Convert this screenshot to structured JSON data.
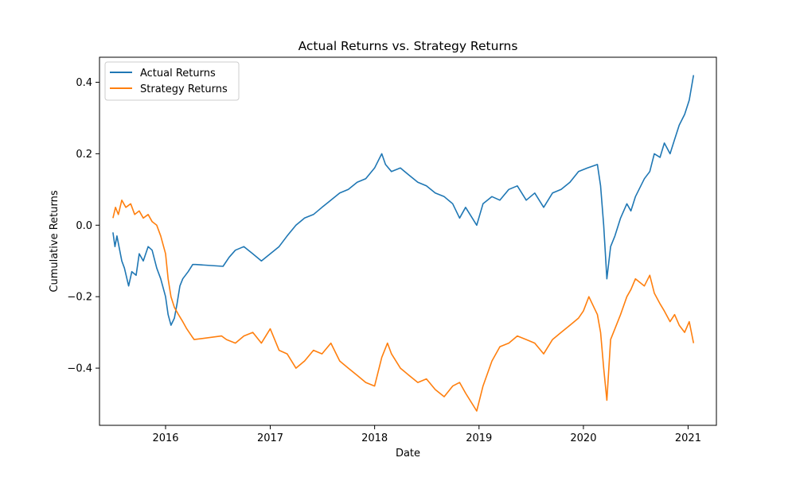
{
  "chart_data": {
    "type": "line",
    "title": "Actual Returns vs. Strategy Returns",
    "xlabel": "Date",
    "ylabel": "Cumulative Returns",
    "x_ticks": [
      "2016",
      "2017",
      "2018",
      "2019",
      "2020",
      "2021"
    ],
    "y_ticks": [
      "−0.4",
      "−0.2",
      "0.0",
      "0.2",
      "0.4"
    ],
    "y_tick_values": [
      -0.4,
      -0.2,
      0.0,
      0.2,
      0.4
    ],
    "xlim": [
      "2015-05-15",
      "2021-04-10"
    ],
    "ylim": [
      -0.56,
      0.47
    ],
    "grid": false,
    "legend_position": "upper-left",
    "series": [
      {
        "name": "Actual Returns",
        "color": "#1f77b4",
        "x": [
          "2015-07-01",
          "2015-07-08",
          "2015-07-15",
          "2015-08-01",
          "2015-08-10",
          "2015-08-25",
          "2015-09-05",
          "2015-09-20",
          "2015-10-01",
          "2015-10-15",
          "2015-11-01",
          "2015-11-15",
          "2015-12-01",
          "2015-12-15",
          "2016-01-01",
          "2016-01-10",
          "2016-01-20",
          "2016-02-01",
          "2016-02-10",
          "2016-02-20",
          "2016-03-01",
          "2016-03-20",
          "2016-04-05",
          "2016-04-15",
          "2016-07-20",
          "2016-08-10",
          "2016-09-01",
          "2016-10-01",
          "2016-11-01",
          "2016-12-01",
          "2017-01-01",
          "2017-02-01",
          "2017-03-01",
          "2017-04-01",
          "2017-05-01",
          "2017-06-01",
          "2017-07-01",
          "2017-08-01",
          "2017-09-01",
          "2017-10-01",
          "2017-11-01",
          "2017-12-01",
          "2018-01-01",
          "2018-01-26",
          "2018-02-08",
          "2018-03-01",
          "2018-04-01",
          "2018-05-01",
          "2018-06-01",
          "2018-07-01",
          "2018-08-01",
          "2018-09-01",
          "2018-10-01",
          "2018-10-25",
          "2018-11-15",
          "2018-12-24",
          "2019-01-15",
          "2019-02-15",
          "2019-03-15",
          "2019-04-15",
          "2019-05-15",
          "2019-06-15",
          "2019-07-15",
          "2019-08-15",
          "2019-09-15",
          "2019-10-15",
          "2019-11-15",
          "2019-12-15",
          "2020-01-15",
          "2020-02-19",
          "2020-03-01",
          "2020-03-12",
          "2020-03-23",
          "2020-04-05",
          "2020-04-20",
          "2020-05-10",
          "2020-06-01",
          "2020-06-15",
          "2020-07-01",
          "2020-08-01",
          "2020-08-20",
          "2020-09-05",
          "2020-09-25",
          "2020-10-10",
          "2020-10-30",
          "2020-11-15",
          "2020-12-01",
          "2020-12-20",
          "2021-01-05",
          "2021-01-20"
        ],
        "values": [
          -0.02,
          -0.06,
          -0.03,
          -0.1,
          -0.12,
          -0.17,
          -0.13,
          -0.14,
          -0.08,
          -0.1,
          -0.06,
          -0.07,
          -0.12,
          -0.15,
          -0.2,
          -0.25,
          -0.28,
          -0.26,
          -0.22,
          -0.17,
          -0.15,
          -0.13,
          -0.11,
          -0.11,
          -0.115,
          -0.09,
          -0.07,
          -0.06,
          -0.08,
          -0.1,
          -0.08,
          -0.06,
          -0.03,
          0.0,
          0.02,
          0.03,
          0.05,
          0.07,
          0.09,
          0.1,
          0.12,
          0.13,
          0.16,
          0.2,
          0.17,
          0.15,
          0.16,
          0.14,
          0.12,
          0.11,
          0.09,
          0.08,
          0.06,
          0.02,
          0.05,
          0.0,
          0.06,
          0.08,
          0.07,
          0.1,
          0.11,
          0.07,
          0.09,
          0.05,
          0.09,
          0.1,
          0.12,
          0.15,
          0.16,
          0.17,
          0.11,
          0.0,
          -0.15,
          -0.06,
          -0.03,
          0.02,
          0.06,
          0.04,
          0.08,
          0.13,
          0.15,
          0.2,
          0.19,
          0.23,
          0.2,
          0.24,
          0.28,
          0.31,
          0.35,
          0.42
        ]
      },
      {
        "name": "Strategy Returns",
        "color": "#ff7f0e",
        "x": [
          "2015-07-01",
          "2015-07-10",
          "2015-07-20",
          "2015-08-01",
          "2015-08-15",
          "2015-09-01",
          "2015-09-15",
          "2015-10-01",
          "2015-10-15",
          "2015-11-01",
          "2015-11-15",
          "2015-12-01",
          "2015-12-15",
          "2016-01-01",
          "2016-01-10",
          "2016-01-20",
          "2016-02-01",
          "2016-02-15",
          "2016-03-01",
          "2016-03-15",
          "2016-04-01",
          "2016-04-10",
          "2016-07-15",
          "2016-08-01",
          "2016-09-01",
          "2016-10-01",
          "2016-11-01",
          "2016-12-01",
          "2017-01-01",
          "2017-02-01",
          "2017-03-01",
          "2017-04-01",
          "2017-05-01",
          "2017-06-01",
          "2017-07-01",
          "2017-08-01",
          "2017-09-01",
          "2017-10-01",
          "2017-11-01",
          "2017-12-01",
          "2018-01-01",
          "2018-01-26",
          "2018-02-15",
          "2018-03-01",
          "2018-04-01",
          "2018-05-01",
          "2018-06-01",
          "2018-07-01",
          "2018-08-01",
          "2018-09-01",
          "2018-10-01",
          "2018-10-25",
          "2018-11-15",
          "2018-12-24",
          "2019-01-15",
          "2019-02-15",
          "2019-03-15",
          "2019-04-15",
          "2019-05-15",
          "2019-06-15",
          "2019-07-15",
          "2019-08-15",
          "2019-09-15",
          "2019-10-15",
          "2019-11-15",
          "2019-12-15",
          "2020-01-01",
          "2020-01-20",
          "2020-02-19",
          "2020-03-01",
          "2020-03-12",
          "2020-03-23",
          "2020-04-05",
          "2020-04-20",
          "2020-05-10",
          "2020-06-01",
          "2020-06-15",
          "2020-07-01",
          "2020-08-01",
          "2020-08-20",
          "2020-09-05",
          "2020-09-25",
          "2020-10-10",
          "2020-10-30",
          "2020-11-15",
          "2020-12-01",
          "2020-12-20",
          "2021-01-05",
          "2021-01-20"
        ],
        "values": [
          0.02,
          0.05,
          0.03,
          0.07,
          0.05,
          0.06,
          0.03,
          0.04,
          0.02,
          0.03,
          0.01,
          0.0,
          -0.03,
          -0.08,
          -0.15,
          -0.2,
          -0.23,
          -0.25,
          -0.27,
          -0.29,
          -0.31,
          -0.32,
          -0.31,
          -0.32,
          -0.33,
          -0.31,
          -0.3,
          -0.33,
          -0.29,
          -0.35,
          -0.36,
          -0.4,
          -0.38,
          -0.35,
          -0.36,
          -0.33,
          -0.38,
          -0.4,
          -0.42,
          -0.44,
          -0.45,
          -0.37,
          -0.33,
          -0.36,
          -0.4,
          -0.42,
          -0.44,
          -0.43,
          -0.46,
          -0.48,
          -0.45,
          -0.44,
          -0.47,
          -0.52,
          -0.45,
          -0.38,
          -0.34,
          -0.33,
          -0.31,
          -0.32,
          -0.33,
          -0.36,
          -0.32,
          -0.3,
          -0.28,
          -0.26,
          -0.24,
          -0.2,
          -0.25,
          -0.3,
          -0.4,
          -0.49,
          -0.32,
          -0.29,
          -0.25,
          -0.2,
          -0.18,
          -0.15,
          -0.17,
          -0.14,
          -0.19,
          -0.22,
          -0.24,
          -0.27,
          -0.25,
          -0.28,
          -0.3,
          -0.27,
          -0.33
        ]
      }
    ]
  }
}
